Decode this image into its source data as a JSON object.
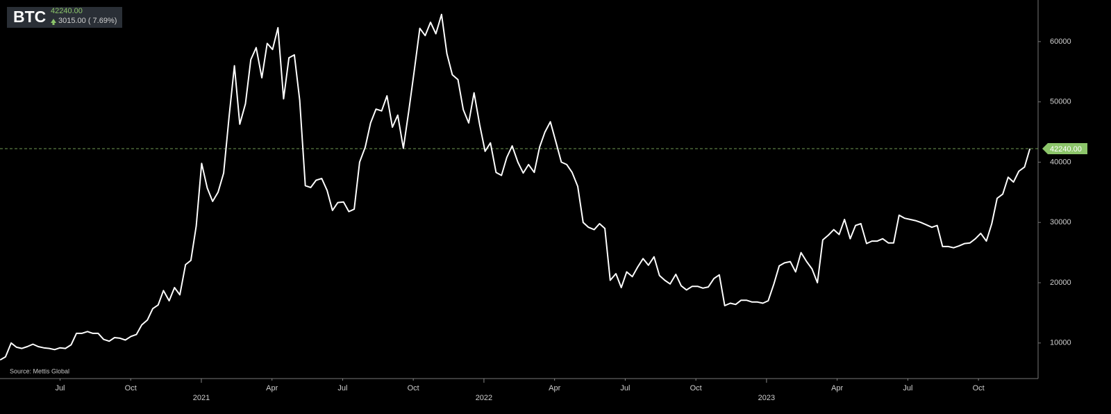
{
  "chart_data": {
    "type": "line",
    "title": "BTC",
    "price": "42240.00",
    "change": "3015.00 ( 7.69%)",
    "source": "Source: Mettis Global",
    "color": "#ffffff",
    "reference_line": {
      "value": 42240,
      "label": "42240.00",
      "color": "#8cc56a"
    },
    "xlim": [
      2020.2875,
      2023.961
    ],
    "ylim": [
      4100,
      66900
    ],
    "yticks": [
      10000,
      20000,
      30000,
      40000,
      50000,
      60000
    ],
    "xticks": [
      {
        "value": 2020.5,
        "label": "Jul"
      },
      {
        "value": 2020.75,
        "label": "Oct"
      },
      2021,
      {
        "value": 2021.25,
        "label": "Apr"
      },
      {
        "value": 2021.5,
        "label": "Jul"
      },
      {
        "value": 2021.75,
        "label": "Oct"
      },
      2022,
      {
        "value": 2022.25,
        "label": "Apr"
      },
      {
        "value": 2022.5,
        "label": "Jul"
      },
      {
        "value": 2022.75,
        "label": "Oct"
      },
      2023,
      {
        "value": 2023.25,
        "label": "Apr"
      },
      {
        "value": 2023.5,
        "label": "Jul"
      },
      {
        "value": 2023.75,
        "label": "Oct"
      }
    ],
    "x": [
      2020.288,
      2020.307,
      2020.327,
      2020.346,
      2020.365,
      2020.384,
      2020.404,
      2020.423,
      2020.442,
      2020.462,
      2020.481,
      2020.5,
      2020.519,
      2020.539,
      2020.558,
      2020.577,
      2020.597,
      2020.616,
      2020.635,
      2020.654,
      2020.674,
      2020.693,
      2020.712,
      2020.731,
      2020.751,
      2020.77,
      2020.789,
      2020.809,
      2020.828,
      2020.847,
      2020.866,
      2020.886,
      2020.905,
      2020.924,
      2020.944,
      2020.963,
      2020.982,
      2021.001,
      2021.021,
      2021.04,
      2021.059,
      2021.079,
      2021.098,
      2021.117,
      2021.136,
      2021.156,
      2021.175,
      2021.194,
      2021.214,
      2021.233,
      2021.252,
      2021.271,
      2021.291,
      2021.31,
      2021.329,
      2021.348,
      2021.368,
      2021.387,
      2021.406,
      2021.426,
      2021.445,
      2021.464,
      2021.483,
      2021.503,
      2021.522,
      2021.541,
      2021.56,
      2021.58,
      2021.599,
      2021.618,
      2021.638,
      2021.657,
      2021.676,
      2021.695,
      2021.715,
      2021.734,
      2021.753,
      2021.773,
      2021.792,
      2021.811,
      2021.83,
      2021.85,
      2021.869,
      2021.888,
      2021.908,
      2021.927,
      2021.946,
      2021.965,
      2021.985,
      2022.004,
      2022.023,
      2022.043,
      2022.062,
      2022.081,
      2022.1,
      2022.12,
      2022.139,
      2022.158,
      2022.178,
      2022.197,
      2022.216,
      2022.235,
      2022.255,
      2022.274,
      2022.293,
      2022.312,
      2022.332,
      2022.351,
      2022.37,
      2022.39,
      2022.409,
      2022.428,
      2022.447,
      2022.467,
      2022.486,
      2022.505,
      2022.525,
      2022.544,
      2022.563,
      2022.582,
      2022.602,
      2022.621,
      2022.64,
      2022.659,
      2022.679,
      2022.698,
      2022.717,
      2022.737,
      2022.756,
      2022.775,
      2022.794,
      2022.814,
      2022.833,
      2022.852,
      2022.872,
      2022.891,
      2022.91,
      2022.929,
      2022.949,
      2022.968,
      2022.987,
      2023.006,
      2023.026,
      2023.045,
      2023.064,
      2023.084,
      2023.103,
      2023.122,
      2023.142,
      2023.161,
      2023.18,
      2023.199,
      2023.219,
      2023.238,
      2023.257,
      2023.276,
      2023.296,
      2023.315,
      2023.334,
      2023.354,
      2023.373,
      2023.392,
      2023.411,
      2023.431,
      2023.45,
      2023.469,
      2023.489,
      2023.508,
      2023.527,
      2023.546,
      2023.566,
      2023.585,
      2023.604,
      2023.623,
      2023.643,
      2023.662,
      2023.681,
      2023.701,
      2023.72,
      2023.739,
      2023.758,
      2023.778,
      2023.797,
      2023.816,
      2023.836,
      2023.855,
      2023.874,
      2023.893,
      2023.913,
      2023.932
    ],
    "values": [
      7200,
      7700,
      10000,
      9300,
      9100,
      9400,
      9800,
      9400,
      9200,
      9100,
      8900,
      9200,
      9100,
      9700,
      11600,
      11600,
      11900,
      11600,
      11600,
      10600,
      10300,
      10900,
      10800,
      10500,
      11100,
      11400,
      13000,
      13800,
      15700,
      16300,
      18700,
      17000,
      19200,
      18000,
      23000,
      23700,
      29400,
      39800,
      35700,
      33500,
      35000,
      38200,
      47400,
      56000,
      46300,
      49700,
      57000,
      59000,
      54000,
      59700,
      58700,
      62300,
      50500,
      57300,
      57800,
      50300,
      36100,
      35800,
      37000,
      37300,
      35300,
      32000,
      33300,
      33400,
      31800,
      32200,
      40000,
      42500,
      46500,
      48800,
      48500,
      51000,
      45800,
      47800,
      42300,
      48500,
      55000,
      62200,
      61000,
      63200,
      61300,
      64500,
      58000,
      54500,
      53700,
      48700,
      46500,
      51500,
      46200,
      41800,
      43200,
      38300,
      37800,
      40800,
      42700,
      40000,
      38200,
      39600,
      38300,
      42500,
      45000,
      46700,
      43300,
      40000,
      39600,
      38300,
      36000,
      30000,
      29200,
      28800,
      29800,
      29000,
      20400,
      21500,
      19200,
      21800,
      21000,
      22600,
      24000,
      22900,
      24300,
      21200,
      20400,
      19800,
      21400,
      19500,
      18800,
      19400,
      19400,
      19100,
      19300,
      20700,
      21300,
      16200,
      16600,
      16400,
      17100,
      17100,
      16800,
      16800,
      16600,
      17000,
      19800,
      22800,
      23300,
      23500,
      21800,
      25000,
      23500,
      22300,
      20000,
      27100,
      27900,
      28800,
      28000,
      30500,
      27300,
      29500,
      29800,
      26500,
      26900,
      26900,
      27300,
      26600,
      26600,
      31200,
      30700,
      30500,
      30300,
      30000,
      29600,
      29200,
      29500,
      26000,
      26000,
      25800,
      26100,
      26500,
      26600,
      27300,
      28200,
      26900,
      29800,
      34000,
      34700,
      37500,
      36700,
      38500,
      39200,
      42240
    ]
  }
}
